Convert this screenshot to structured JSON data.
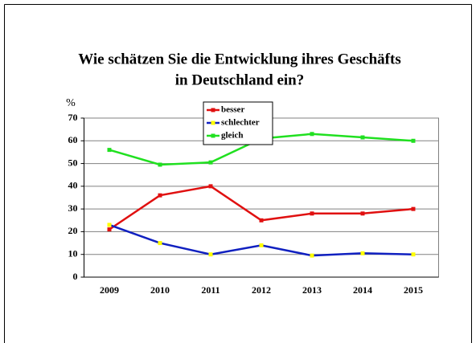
{
  "chart_data": {
    "type": "line",
    "title": "Wie schätzen Sie die Entwicklung ihres Geschäfts",
    "subtitle": "in Deutschland ein?",
    "y_label": "%",
    "categories": [
      "2009",
      "2010",
      "2011",
      "2012",
      "2013",
      "2014",
      "2015"
    ],
    "series": [
      {
        "name": "besser",
        "color": "#e01010",
        "marker_color": "#e01010",
        "values": [
          21,
          36,
          40,
          25,
          28,
          28,
          30
        ]
      },
      {
        "name": "schlechter",
        "color": "#1020c0",
        "marker_color": "#ffff00",
        "values": [
          23,
          15,
          10,
          14,
          9.5,
          10.5,
          10
        ]
      },
      {
        "name": "gleich",
        "color": "#20e020",
        "marker_color": "#20e020",
        "values": [
          56,
          49.5,
          50.5,
          61,
          63,
          61.5,
          60
        ]
      }
    ],
    "ylim": [
      0,
      70
    ],
    "yticks": [
      0,
      10,
      20,
      30,
      40,
      50,
      60,
      70
    ],
    "grid": true,
    "legend": "top"
  }
}
